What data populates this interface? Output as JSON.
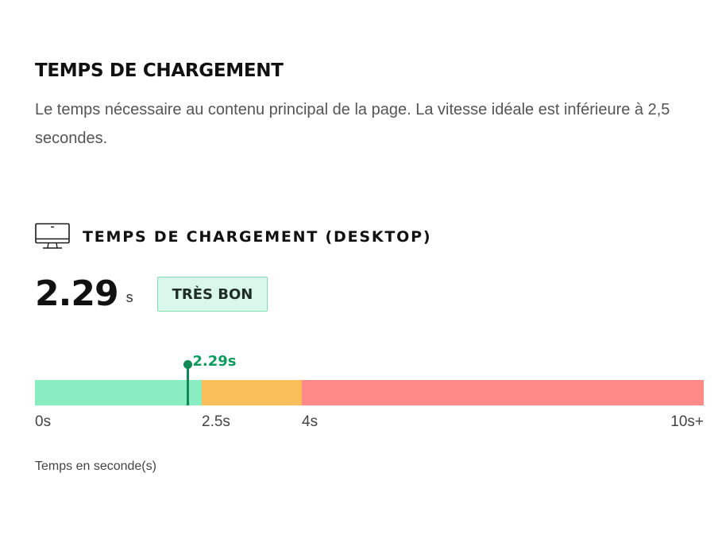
{
  "section": {
    "title": "TEMPS DE CHARGEMENT",
    "description": "Le temps nécessaire au contenu principal de la page. La vitesse idéale est inférieure à 2,5 secondes."
  },
  "metric": {
    "icon": "desktop-monitor-icon",
    "title": "TEMPS DE CHARGEMENT (DESKTOP)",
    "value": "2.29",
    "unit": "s",
    "rating": "TRÈS BON"
  },
  "gauge": {
    "min": 0,
    "max": 10,
    "value": 2.29,
    "value_label": "2.29s",
    "segments": [
      {
        "from": 0,
        "to": 2.5,
        "color": "#8aedc2"
      },
      {
        "from": 2.5,
        "to": 4,
        "color": "#f8bf5b"
      },
      {
        "from": 4,
        "to": 10,
        "color": "#ff8a87"
      }
    ],
    "ticks": [
      {
        "value": 0,
        "label": "0s"
      },
      {
        "value": 2.5,
        "label": "2.5s"
      },
      {
        "value": 4,
        "label": "4s"
      },
      {
        "value": 10,
        "label": "10s+"
      }
    ],
    "marker_color": "#0f8a57",
    "caption": "Temps en seconde(s)"
  }
}
